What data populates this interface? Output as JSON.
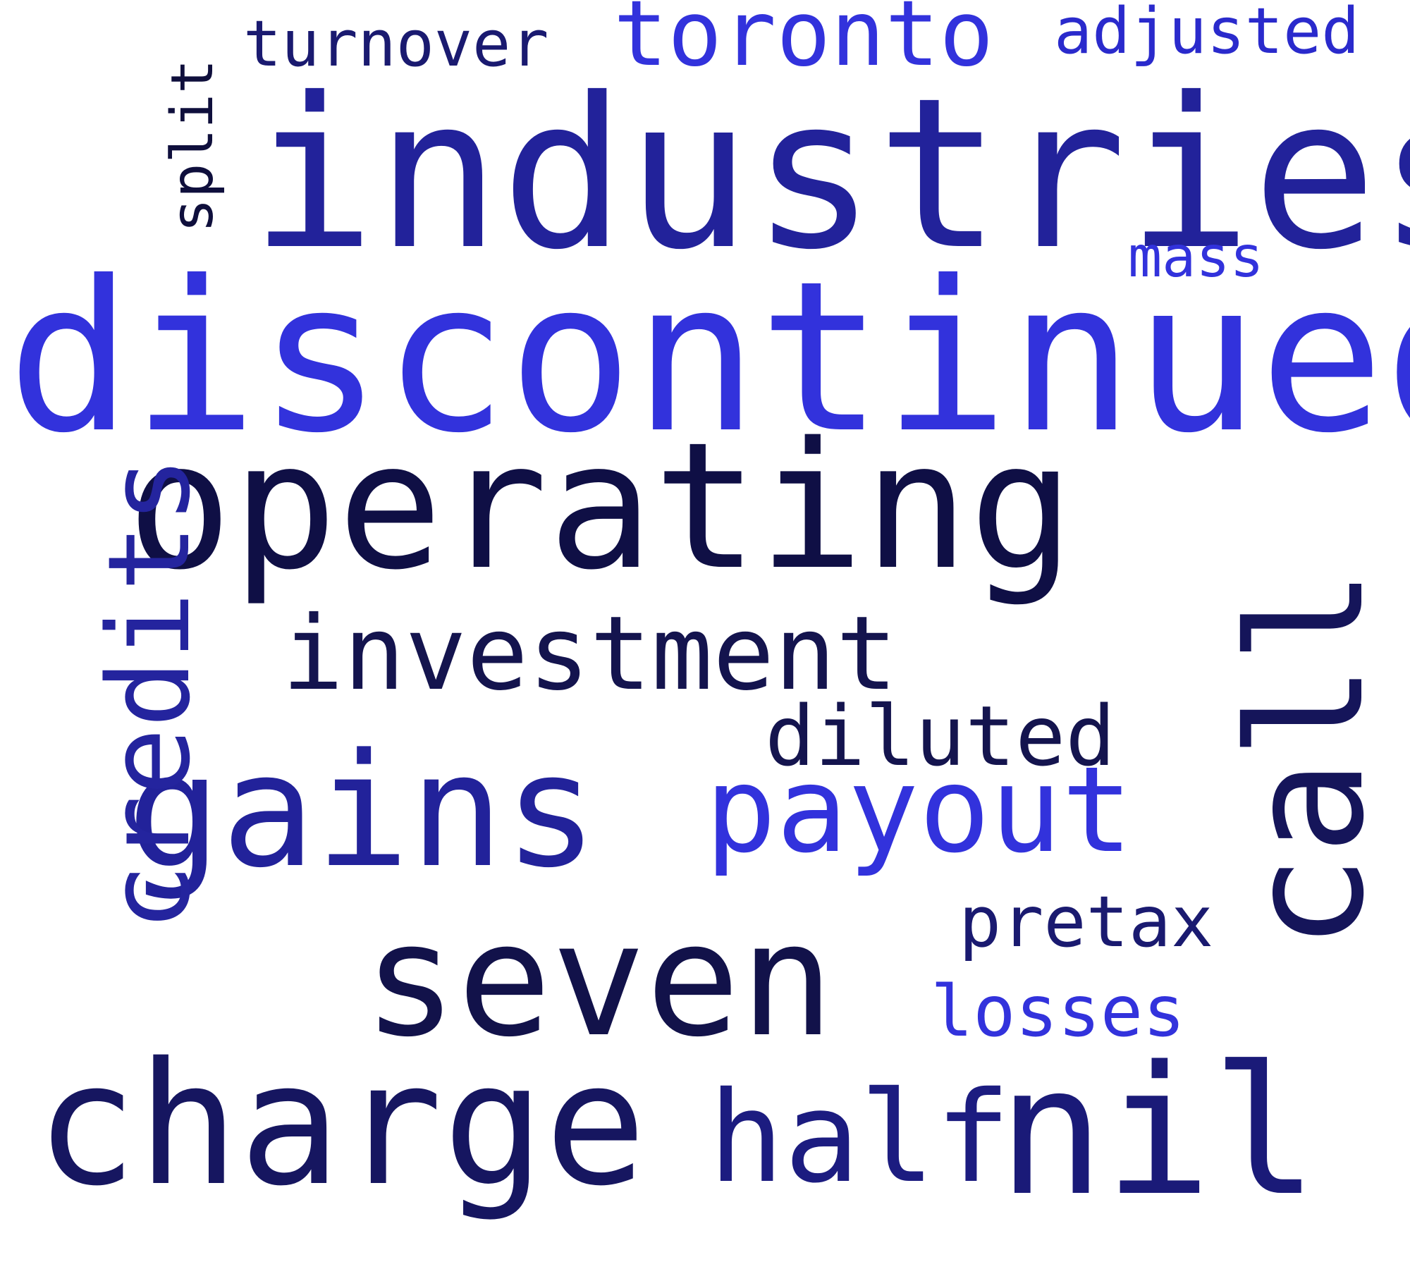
{
  "wordcloud": {
    "words": [
      {
        "text": "industries",
        "color": "#22229a"
      },
      {
        "text": "discontinued",
        "color": "#3232dc"
      },
      {
        "text": "operating",
        "color": "#0f0f45"
      },
      {
        "text": "gains",
        "color": "#22229a"
      },
      {
        "text": "seven",
        "color": "#12124a"
      },
      {
        "text": "charge",
        "color": "#161660"
      },
      {
        "text": "nil",
        "color": "#1a1a78"
      },
      {
        "text": "half",
        "color": "#1c1c80"
      },
      {
        "text": "payout",
        "color": "#3232dc"
      },
      {
        "text": "investment",
        "color": "#14144e"
      },
      {
        "text": "diluted",
        "color": "#14144e"
      },
      {
        "text": "pretax",
        "color": "#1a1a70"
      },
      {
        "text": "losses",
        "color": "#3232dc"
      },
      {
        "text": "toronto",
        "color": "#3232dc"
      },
      {
        "text": "adjusted",
        "color": "#2a2acc"
      },
      {
        "text": "turnover",
        "color": "#1a1a70"
      },
      {
        "text": "mass",
        "color": "#3232dc"
      },
      {
        "text": "split",
        "color": "#0f0f3c"
      },
      {
        "text": "credits",
        "color": "#24249e"
      },
      {
        "text": "call",
        "color": "#15155a"
      }
    ]
  }
}
